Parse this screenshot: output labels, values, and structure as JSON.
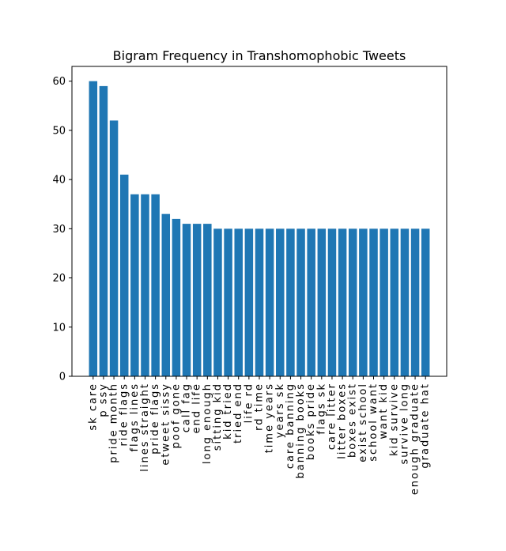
{
  "chart_data": {
    "type": "bar",
    "title": "Bigram Frequency in Transhomophobic Tweets",
    "xlabel": "",
    "ylabel": "",
    "ylim": [
      0,
      63
    ],
    "yticks": [
      0,
      10,
      20,
      30,
      40,
      50,
      60
    ],
    "bar_color": "#1f77b4",
    "grid": false,
    "categories": [
      "sk care",
      "p ssy",
      "pride month",
      "ride flags",
      "flags lines",
      "lines straight",
      "pride flags",
      "etweet sissy",
      "poof gone",
      "call fag",
      "end life",
      "long enough",
      "sitting kid",
      "kid tried",
      "tried end",
      "life rd",
      "rd time",
      "time years",
      "years sk",
      "care banning",
      "banning books",
      "books pride",
      "flags sk",
      "care litter",
      "litter boxes",
      "boxes exist",
      "exist school",
      "school want",
      "want kid",
      "kid survive",
      "survive long",
      "enough graduate",
      "graduate hat"
    ],
    "values": [
      60,
      59,
      52,
      41,
      37,
      37,
      37,
      33,
      32,
      31,
      31,
      31,
      30,
      30,
      30,
      30,
      30,
      30,
      30,
      30,
      30,
      30,
      30,
      30,
      30,
      30,
      30,
      30,
      30,
      30,
      30,
      30,
      30
    ]
  }
}
